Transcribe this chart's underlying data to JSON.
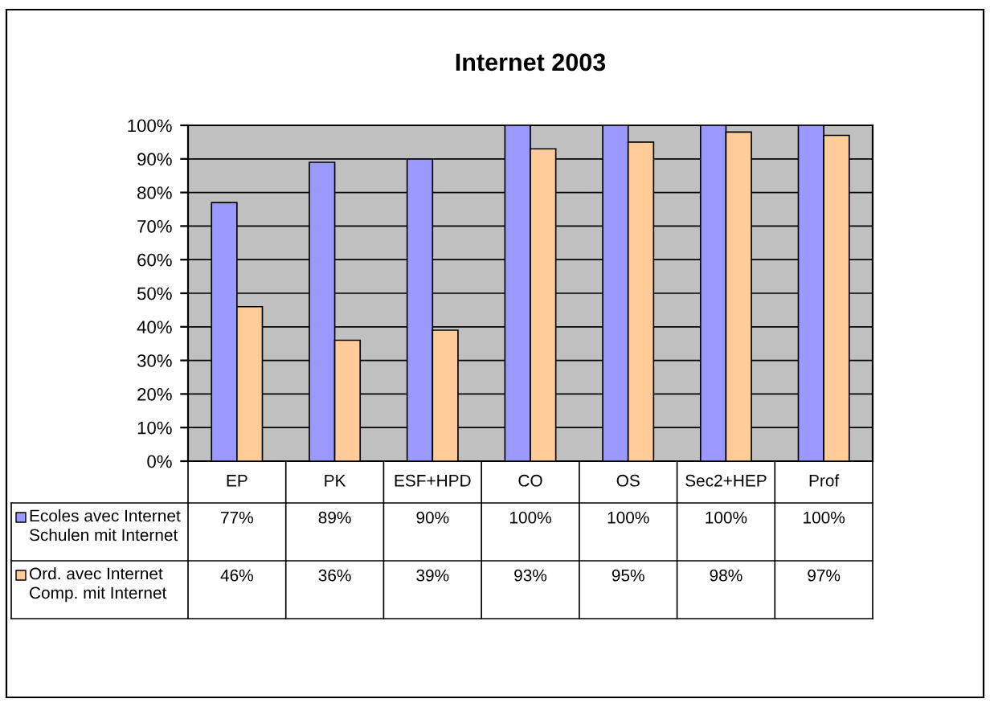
{
  "chart_data": {
    "type": "bar",
    "title": "Internet 2003",
    "categories": [
      "EP",
      "PK",
      "ESF+HPD",
      "CO",
      "OS",
      "Sec2+HEP",
      "Prof"
    ],
    "series": [
      {
        "name": "Ecoles avec Internet\nSchulen mit Internet",
        "color": "#9999ff",
        "values": [
          77,
          89,
          90,
          100,
          100,
          100,
          100
        ],
        "value_labels": [
          "77%",
          "89%",
          "90%",
          "100%",
          "100%",
          "100%",
          "100%"
        ]
      },
      {
        "name": "Ord. avec Internet\nComp. mit Internet",
        "color": "#ffcc99",
        "values": [
          46,
          36,
          39,
          93,
          95,
          98,
          97
        ],
        "value_labels": [
          "46%",
          "36%",
          "39%",
          "93%",
          "95%",
          "98%",
          "97%"
        ]
      }
    ],
    "ylim": [
      0,
      100
    ],
    "yticks": [
      {
        "value": 0,
        "label": "0%"
      },
      {
        "value": 10,
        "label": "10%"
      },
      {
        "value": 20,
        "label": "20%"
      },
      {
        "value": 30,
        "label": "30%"
      },
      {
        "value": 40,
        "label": "40%"
      },
      {
        "value": 50,
        "label": "50%"
      },
      {
        "value": 60,
        "label": "60%"
      },
      {
        "value": 70,
        "label": "70%"
      },
      {
        "value": 80,
        "label": "80%"
      },
      {
        "value": 90,
        "label": "90%"
      },
      {
        "value": 100,
        "label": "100%"
      }
    ],
    "grid": "y",
    "legend": "bottom left"
  }
}
